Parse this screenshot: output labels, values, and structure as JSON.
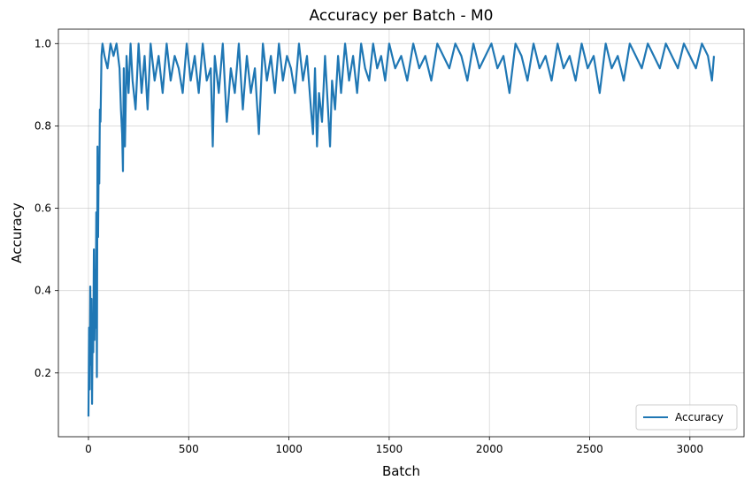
{
  "chart_data": {
    "type": "line",
    "title": "Accuracy per Batch - M0",
    "xlabel": "Batch",
    "ylabel": "Accuracy",
    "xlim": [
      -150,
      3270
    ],
    "ylim": [
      0.045,
      1.035
    ],
    "xticks": [
      0,
      500,
      1000,
      1500,
      2000,
      2500,
      3000
    ],
    "xtick_labels": [
      "0",
      "500",
      "1000",
      "1500",
      "2000",
      "2500",
      "3000"
    ],
    "yticks": [
      0.2,
      0.4,
      0.6,
      0.8,
      1.0
    ],
    "ytick_labels": [
      "0.2",
      "0.4",
      "0.6",
      "0.8",
      "1.0"
    ],
    "grid": true,
    "legend_position": "lower-right",
    "series": [
      {
        "name": "Accuracy",
        "color": "#1f77b4",
        "x_start": 0,
        "x_end": 3120,
        "points": [
          [
            0,
            0.094
          ],
          [
            3,
            0.31
          ],
          [
            6,
            0.16
          ],
          [
            9,
            0.41
          ],
          [
            12,
            0.22
          ],
          [
            15,
            0.38
          ],
          [
            18,
            0.125
          ],
          [
            21,
            0.34
          ],
          [
            24,
            0.25
          ],
          [
            27,
            0.5
          ],
          [
            30,
            0.28
          ],
          [
            33,
            0.45
          ],
          [
            36,
            0.31
          ],
          [
            39,
            0.59
          ],
          [
            42,
            0.19
          ],
          [
            45,
            0.75
          ],
          [
            48,
            0.53
          ],
          [
            51,
            0.72
          ],
          [
            54,
            0.66
          ],
          [
            57,
            0.84
          ],
          [
            60,
            0.81
          ],
          [
            65,
            0.97
          ],
          [
            70,
            1.0
          ],
          [
            80,
            0.97
          ],
          [
            95,
            0.94
          ],
          [
            110,
            1.0
          ],
          [
            125,
            0.97
          ],
          [
            140,
            1.0
          ],
          [
            155,
            0.94
          ],
          [
            162,
            0.84
          ],
          [
            168,
            0.78
          ],
          [
            172,
            0.69
          ],
          [
            176,
            0.94
          ],
          [
            182,
            0.75
          ],
          [
            190,
            0.97
          ],
          [
            200,
            0.88
          ],
          [
            210,
            1.0
          ],
          [
            220,
            0.91
          ],
          [
            235,
            0.84
          ],
          [
            250,
            1.0
          ],
          [
            265,
            0.88
          ],
          [
            280,
            0.97
          ],
          [
            295,
            0.84
          ],
          [
            310,
            1.0
          ],
          [
            330,
            0.91
          ],
          [
            350,
            0.97
          ],
          [
            370,
            0.88
          ],
          [
            390,
            1.0
          ],
          [
            410,
            0.91
          ],
          [
            430,
            0.97
          ],
          [
            450,
            0.94
          ],
          [
            470,
            0.88
          ],
          [
            490,
            1.0
          ],
          [
            510,
            0.91
          ],
          [
            530,
            0.97
          ],
          [
            550,
            0.88
          ],
          [
            570,
            1.0
          ],
          [
            590,
            0.91
          ],
          [
            610,
            0.94
          ],
          [
            620,
            0.75
          ],
          [
            630,
            0.97
          ],
          [
            650,
            0.88
          ],
          [
            670,
            1.0
          ],
          [
            690,
            0.81
          ],
          [
            710,
            0.94
          ],
          [
            730,
            0.88
          ],
          [
            750,
            1.0
          ],
          [
            770,
            0.84
          ],
          [
            790,
            0.97
          ],
          [
            810,
            0.88
          ],
          [
            830,
            0.94
          ],
          [
            850,
            0.78
          ],
          [
            870,
            1.0
          ],
          [
            890,
            0.91
          ],
          [
            910,
            0.97
          ],
          [
            930,
            0.88
          ],
          [
            950,
            1.0
          ],
          [
            970,
            0.91
          ],
          [
            990,
            0.97
          ],
          [
            1010,
            0.94
          ],
          [
            1030,
            0.88
          ],
          [
            1050,
            1.0
          ],
          [
            1070,
            0.91
          ],
          [
            1090,
            0.97
          ],
          [
            1110,
            0.84
          ],
          [
            1120,
            0.78
          ],
          [
            1130,
            0.94
          ],
          [
            1140,
            0.75
          ],
          [
            1150,
            0.88
          ],
          [
            1165,
            0.81
          ],
          [
            1180,
            0.97
          ],
          [
            1195,
            0.84
          ],
          [
            1205,
            0.75
          ],
          [
            1215,
            0.91
          ],
          [
            1230,
            0.84
          ],
          [
            1245,
            0.97
          ],
          [
            1260,
            0.88
          ],
          [
            1280,
            1.0
          ],
          [
            1300,
            0.91
          ],
          [
            1320,
            0.97
          ],
          [
            1340,
            0.88
          ],
          [
            1360,
            1.0
          ],
          [
            1380,
            0.94
          ],
          [
            1400,
            0.91
          ],
          [
            1420,
            1.0
          ],
          [
            1440,
            0.94
          ],
          [
            1460,
            0.97
          ],
          [
            1480,
            0.91
          ],
          [
            1500,
            1.0
          ],
          [
            1530,
            0.94
          ],
          [
            1560,
            0.97
          ],
          [
            1590,
            0.91
          ],
          [
            1620,
            1.0
          ],
          [
            1650,
            0.94
          ],
          [
            1680,
            0.97
          ],
          [
            1710,
            0.91
          ],
          [
            1740,
            1.0
          ],
          [
            1770,
            0.97
          ],
          [
            1800,
            0.94
          ],
          [
            1830,
            1.0
          ],
          [
            1860,
            0.97
          ],
          [
            1890,
            0.91
          ],
          [
            1920,
            1.0
          ],
          [
            1950,
            0.94
          ],
          [
            1980,
            0.97
          ],
          [
            2010,
            1.0
          ],
          [
            2040,
            0.94
          ],
          [
            2070,
            0.97
          ],
          [
            2100,
            0.88
          ],
          [
            2130,
            1.0
          ],
          [
            2160,
            0.97
          ],
          [
            2190,
            0.91
          ],
          [
            2220,
            1.0
          ],
          [
            2250,
            0.94
          ],
          [
            2280,
            0.97
          ],
          [
            2310,
            0.91
          ],
          [
            2340,
            1.0
          ],
          [
            2370,
            0.94
          ],
          [
            2400,
            0.97
          ],
          [
            2430,
            0.91
          ],
          [
            2460,
            1.0
          ],
          [
            2490,
            0.94
          ],
          [
            2520,
            0.97
          ],
          [
            2550,
            0.88
          ],
          [
            2580,
            1.0
          ],
          [
            2610,
            0.94
          ],
          [
            2640,
            0.97
          ],
          [
            2670,
            0.91
          ],
          [
            2700,
            1.0
          ],
          [
            2730,
            0.97
          ],
          [
            2760,
            0.94
          ],
          [
            2790,
            1.0
          ],
          [
            2820,
            0.97
          ],
          [
            2850,
            0.94
          ],
          [
            2880,
            1.0
          ],
          [
            2910,
            0.97
          ],
          [
            2940,
            0.94
          ],
          [
            2970,
            1.0
          ],
          [
            3000,
            0.97
          ],
          [
            3030,
            0.94
          ],
          [
            3060,
            1.0
          ],
          [
            3090,
            0.97
          ],
          [
            3110,
            0.91
          ],
          [
            3120,
            0.97
          ]
        ]
      }
    ]
  }
}
